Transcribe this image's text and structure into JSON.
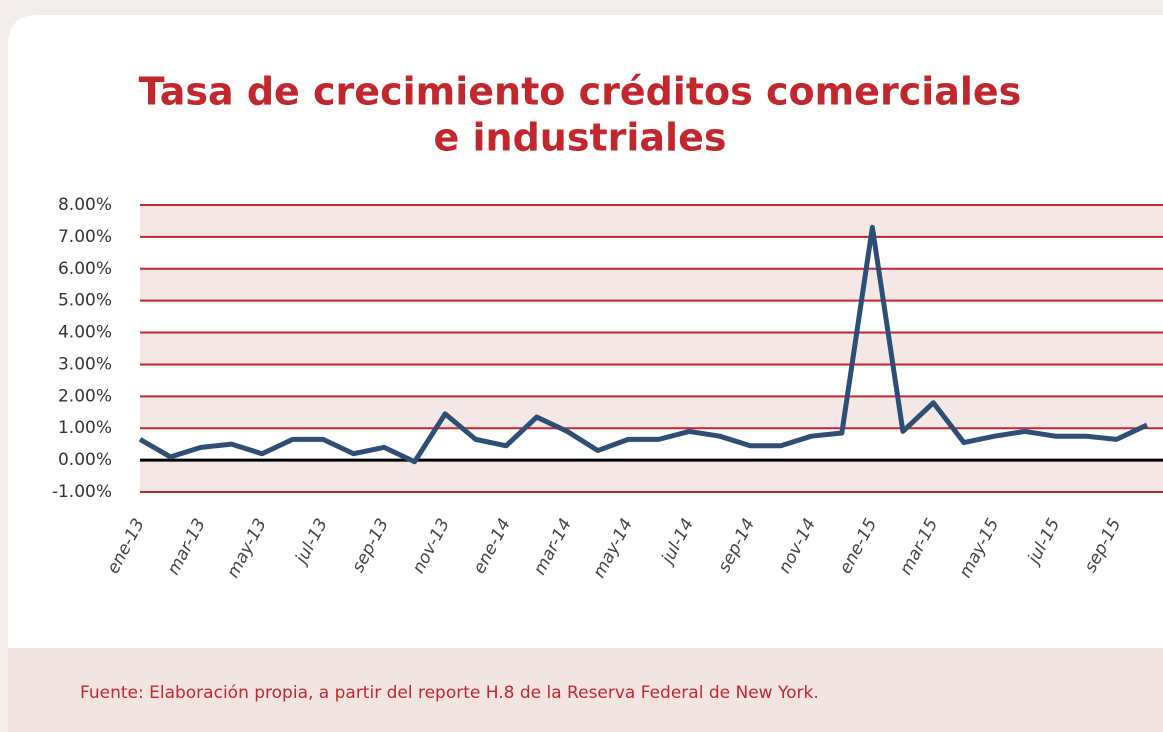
{
  "chart_data": {
    "type": "line",
    "title": [
      "Tasa de crecimiento créditos comerciales",
      "e industriales"
    ],
    "categories": [
      "ene-13",
      null,
      "mar-13",
      null,
      "may-13",
      null,
      "jul-13",
      null,
      "sep-13",
      null,
      "nov-13",
      null,
      "ene-14",
      null,
      "mar-14",
      null,
      "may-14",
      null,
      "jul-14",
      null,
      "sep-14",
      null,
      "nov-14",
      null,
      "ene-15",
      null,
      "mar-15",
      null,
      "may-15",
      null,
      "jul-15",
      null,
      "sep-15",
      null
    ],
    "series": [
      {
        "color": "#2d4e75",
        "values": [
          0.65,
          0.1,
          0.4,
          0.5,
          0.2,
          0.65,
          0.65,
          0.2,
          0.4,
          -0.05,
          1.45,
          0.65,
          0.45,
          1.35,
          0.9,
          0.3,
          0.65,
          0.65,
          0.9,
          0.75,
          0.45,
          0.45,
          0.75,
          0.85,
          7.3,
          0.9,
          1.8,
          0.55,
          0.75,
          0.9,
          0.75,
          0.75,
          0.65,
          1.1
        ]
      }
    ],
    "ylim": [
      -1,
      8
    ],
    "yticks": [
      {
        "value": -1,
        "label": "-1.00%"
      },
      {
        "value": 0,
        "label": "0.00%"
      },
      {
        "value": 1,
        "label": "1.00%"
      },
      {
        "value": 2,
        "label": "2.00%"
      },
      {
        "value": 3,
        "label": "3.00%"
      },
      {
        "value": 4,
        "label": "4.00%"
      },
      {
        "value": 5,
        "label": "5.00%"
      },
      {
        "value": 6,
        "label": "6.00%"
      },
      {
        "value": 7,
        "label": "7.00%"
      },
      {
        "value": 8,
        "label": "8.00%"
      }
    ],
    "grid": true,
    "source": "Fuente: Elaboración propia, a partir del reporte H.8 de la Reserva Federal de New York."
  }
}
